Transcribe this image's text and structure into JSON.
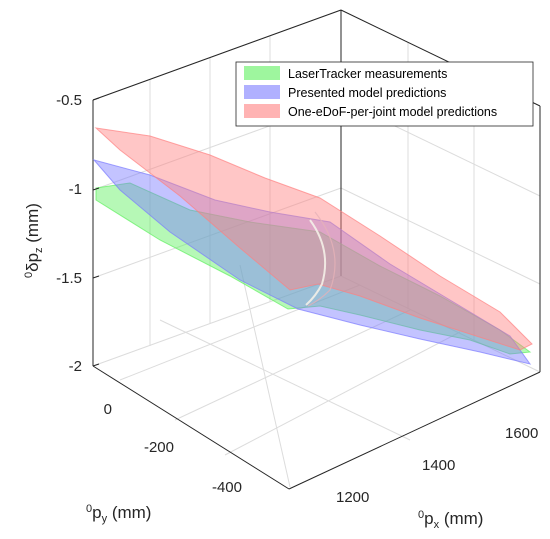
{
  "chart_data": {
    "type": "surface3d",
    "title": "",
    "z_axis": {
      "label_sup": "0",
      "label_main": "δp",
      "label_sub": "z",
      "label_unit": " (mm)",
      "ticks": [
        "-0.5",
        "-1",
        "-1.5",
        "-2"
      ],
      "range": [
        -2,
        -0.5
      ]
    },
    "y_axis": {
      "label_sup": "0",
      "label_main": "p",
      "label_sub": "y",
      "label_unit": " (mm)",
      "ticks": [
        "0",
        "-200",
        "-400"
      ]
    },
    "x_axis": {
      "label_sup": "0",
      "label_main": "p",
      "label_sub": "x",
      "label_unit": " (mm)",
      "ticks": [
        "1200",
        "1400",
        "1600"
      ]
    },
    "grid": true,
    "legend_position": "top-right",
    "series": [
      {
        "name": "LaserTracker measurements",
        "color": "#5ef05e"
      },
      {
        "name": "Presented model predictions",
        "color": "#7b7bff"
      },
      {
        "name": "One-eDoF-per-joint model predictions",
        "color": "#ff8080"
      }
    ]
  }
}
